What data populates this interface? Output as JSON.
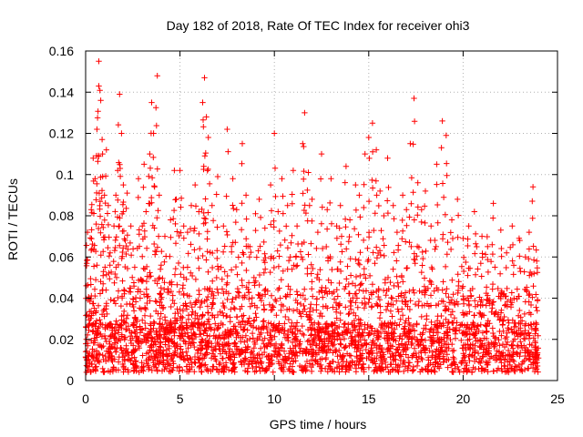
{
  "chart_data": {
    "type": "scatter",
    "title": "Day 182 of 2018, Rate Of TEC Index for receiver ohi3",
    "xlabel": "GPS time / hours",
    "ylabel": "ROTI / TECUs",
    "xlim": [
      0,
      25
    ],
    "ylim": [
      0,
      0.16
    ],
    "xticks": [
      0,
      5,
      10,
      15,
      20,
      25
    ],
    "yticks": [
      0,
      0.02,
      0.04,
      0.06,
      0.08,
      0.1,
      0.12,
      0.14,
      0.16
    ],
    "xtick_labels": [
      "0",
      "5",
      "10",
      "15",
      "20",
      "25"
    ],
    "ytick_labels": [
      "0",
      "0.02",
      "0.04",
      "0.06",
      "0.08",
      "0.1",
      "0.12",
      "0.14",
      "0.16"
    ],
    "grid": true,
    "marker": "+",
    "color": "#ff0000",
    "data_x_range": [
      0,
      24
    ],
    "series": [
      {
        "x": [
          0.1,
          0.3,
          0.4,
          0.5,
          0.6,
          0.7,
          0.7,
          0.8,
          0.9,
          1.0,
          1.1,
          1.2,
          1.3,
          1.5,
          1.6,
          1.7,
          1.8,
          1.9,
          2.0,
          2.0,
          2.1,
          2.2,
          2.4,
          2.6,
          2.8,
          3.0,
          3.1,
          3.2,
          3.4,
          3.5,
          3.6,
          3.8,
          3.9,
          4.0,
          4.2,
          4.5,
          4.7,
          4.8,
          5.0,
          5.2,
          5.4,
          5.6,
          5.8,
          6.0,
          6.2,
          6.3,
          6.4,
          6.5,
          6.7,
          7.0,
          7.3,
          7.5,
          7.8,
          8.0,
          8.3,
          8.5,
          8.7,
          9.0,
          9.2,
          9.5,
          9.8,
          10.0,
          10.2,
          10.4,
          10.7,
          11.0,
          11.2,
          11.5,
          11.6,
          11.8,
          12.0,
          12.3,
          12.5,
          12.8,
          13.0,
          13.3,
          13.5,
          13.8,
          14.0,
          14.3,
          14.5,
          14.8,
          15.0,
          15.2,
          15.4,
          15.6,
          15.8,
          16.0,
          16.3,
          16.5,
          16.8,
          17.0,
          17.2,
          17.4,
          17.6,
          17.8,
          18.0,
          18.3,
          18.6,
          18.9,
          19.1,
          19.4,
          19.7,
          20.0,
          20.3,
          20.6,
          21.0,
          21.3,
          21.6,
          22.0,
          22.3,
          22.6,
          23.0,
          23.3,
          23.5,
          23.7,
          23.9
        ],
        "y": [
          0.072,
          0.083,
          0.108,
          0.098,
          0.122,
          0.155,
          0.143,
          0.136,
          0.11,
          0.09,
          0.112,
          0.085,
          0.062,
          0.075,
          0.09,
          0.102,
          0.139,
          0.12,
          0.095,
          0.082,
          0.068,
          0.091,
          0.075,
          0.055,
          0.098,
          0.075,
          0.105,
          0.082,
          0.11,
          0.135,
          0.12,
          0.148,
          0.09,
          0.056,
          0.07,
          0.078,
          0.102,
          0.088,
          0.102,
          0.075,
          0.072,
          0.085,
          0.095,
          0.082,
          0.135,
          0.147,
          0.128,
          0.118,
          0.085,
          0.099,
          0.075,
          0.122,
          0.098,
          0.083,
          0.115,
          0.09,
          0.065,
          0.081,
          0.088,
          0.074,
          0.095,
          0.12,
          0.082,
          0.098,
          0.085,
          0.102,
          0.075,
          0.115,
          0.13,
          0.101,
          0.088,
          0.072,
          0.11,
          0.083,
          0.098,
          0.075,
          0.085,
          0.104,
          0.078,
          0.095,
          0.09,
          0.11,
          0.118,
          0.125,
          0.112,
          0.092,
          0.08,
          0.108,
          0.085,
          0.072,
          0.09,
          0.083,
          0.115,
          0.137,
          0.096,
          0.083,
          0.092,
          0.075,
          0.105,
          0.126,
          0.119,
          0.078,
          0.088,
          0.069,
          0.075,
          0.082,
          0.07,
          0.065,
          0.086,
          0.073,
          0.062,
          0.075,
          0.068,
          0.06,
          0.072,
          0.094,
          0.058
        ]
      }
    ]
  }
}
